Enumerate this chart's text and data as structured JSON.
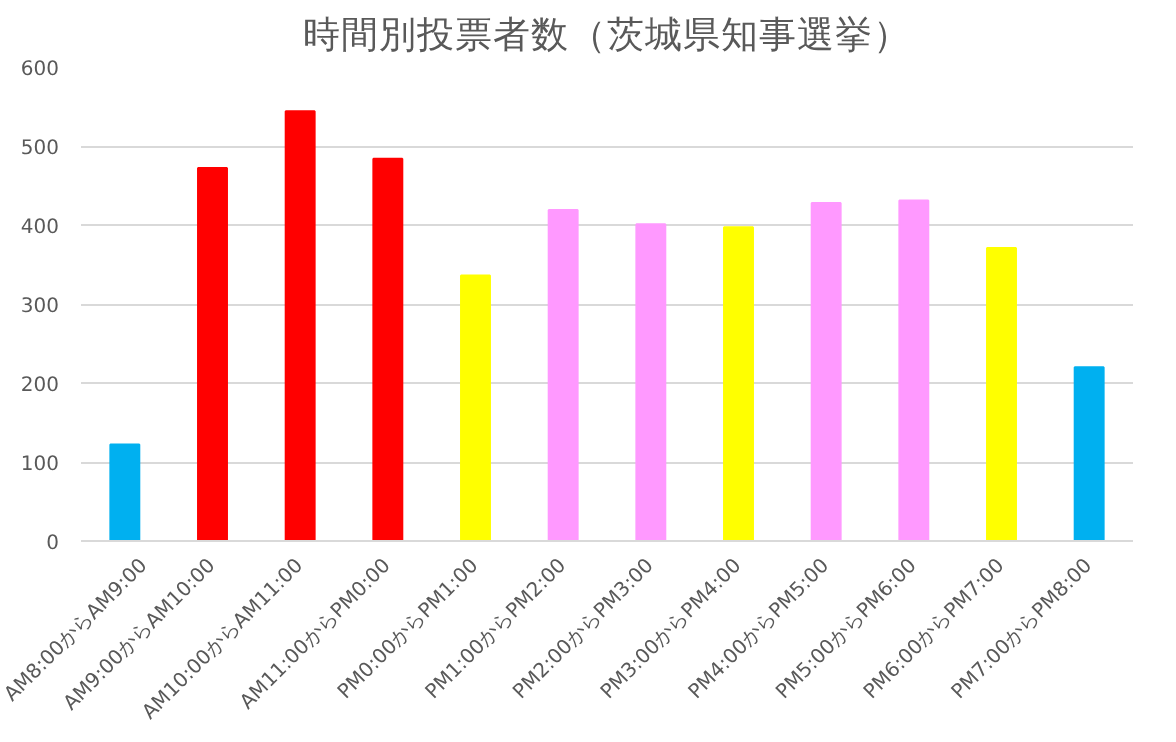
{
  "chart_data": {
    "type": "bar",
    "title": "時間別投票者数（茨城県知事選挙）",
    "categories": [
      "AM8:00からAM9:00",
      "AM9:00からAM10:00",
      "AM10:00からAM11:00",
      "AM11:00からPM0:00",
      "PM0:00からPM1:00",
      "PM1:00からPM2:00",
      "PM2:00からPM3:00",
      "PM3:00からPM4:00",
      "PM4:00からPM5:00",
      "PM5:00からPM6:00",
      "PM6:00からPM7:00",
      "PM7:00からPM8:00"
    ],
    "values": [
      122,
      472,
      544,
      484,
      336,
      419,
      401,
      397,
      428,
      431,
      371,
      220
    ],
    "colors": [
      "#00b0f0",
      "#ff0000",
      "#ff0000",
      "#ff0000",
      "#ffff00",
      "#ff99ff",
      "#ff99ff",
      "#ffff00",
      "#ff99ff",
      "#ff99ff",
      "#ffff00",
      "#00b0f0"
    ],
    "ylim": [
      0,
      600
    ],
    "yticks": [
      0,
      100,
      200,
      300,
      400,
      500,
      600
    ],
    "grid": "y"
  }
}
